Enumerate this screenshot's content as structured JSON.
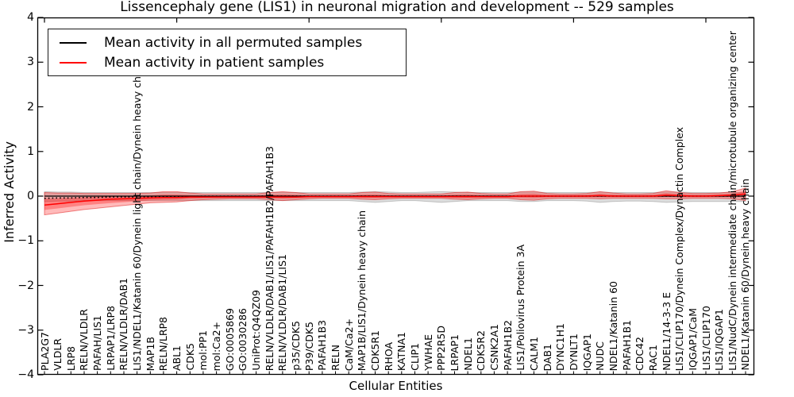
{
  "chart_data": {
    "type": "line",
    "title": "Lissencephaly gene (LIS1) in neuronal migration and development -- 529 samples",
    "xlabel": "Cellular Entities",
    "ylabel": "Inferred Activity",
    "ylim": [
      -4,
      4
    ],
    "yticks": [
      4,
      3,
      2,
      1,
      0,
      -1,
      -2,
      -3,
      -4
    ],
    "grid": false,
    "legend_position": "upper left",
    "legend": [
      {
        "label": "Mean activity in all permuted samples",
        "color": "#000000"
      },
      {
        "label": "Mean activity in patient samples",
        "color": "#ff0000"
      }
    ],
    "categories": [
      "PLA2G7",
      "VLDLR",
      "LRP8",
      "RELN/VLDLR",
      "PAFAH/LIS1",
      "LRPAP1/LRP8",
      "RELN/VLDLR/DAB1",
      "LIS1/NDEL1/Katanin 60/Dynein light chain/Dynein heavy chain",
      "MAP1B",
      "RELN/LRP8",
      "ABL1",
      "CDK5",
      "mol:PP1",
      "mol:Ca2+",
      "GO:0005869",
      "GO:0030286",
      "UniProt:Q4QZ09",
      "RELN/VLDLR/DAB1/LIS1/PAFAH1B2/PAFAH1B3",
      "RELN/VLDLR/DAB1/LIS1",
      "p35/CDK5",
      "P39/CDK5",
      "PAFAH1B3",
      "RELN",
      "CaM/Ca2+",
      "MAP1B/LIS1/Dynein heavy chain",
      "CDK5R1",
      "RHOA",
      "KATNA1",
      "CLIP1",
      "YWHAE",
      "PPP2R5D",
      "LRPAP1",
      "NDEL1",
      "CDK5R2",
      "CSNK2A1",
      "PAFAH1B2",
      "LIS1/Poliovirus Protein 3A",
      "CALM1",
      "DAB1",
      "DYNC1H1",
      "DYNLT1",
      "IQGAP1",
      "NUDC",
      "NDEL1/Katanin 60",
      "PAFAH1B1",
      "CDC42",
      "RAC1",
      "NDEL1/14-3-3 E",
      "LIS1/CLIP170/Dynein Complex/Dynactin Complex",
      "IQGAP1/CaM",
      "LIS1/CLIP170",
      "LIS1/IQGAP1",
      "LIS1/NudC/Dynein intermediate chain/microtubule organizing center",
      "NDEL1/Katanin 60/Dynein heavy chain"
    ],
    "series": [
      {
        "name": "Mean activity in all permuted samples",
        "color": "#000000",
        "style": "solid",
        "values": [
          0,
          0,
          0,
          0,
          0,
          0,
          0,
          0,
          0,
          0,
          0,
          0,
          0,
          0,
          0,
          0,
          0,
          0,
          0,
          0,
          0,
          0,
          0,
          0,
          0,
          0,
          0,
          0,
          0,
          0,
          0,
          0,
          0,
          0,
          0,
          0,
          0,
          0,
          0,
          0,
          0,
          0,
          0,
          0,
          0,
          0,
          0,
          0,
          0,
          0,
          0,
          0,
          0,
          0
        ]
      },
      {
        "name": "permuted mean (dotted)",
        "color": "#000000",
        "style": "dotted",
        "values": [
          -0.05,
          -0.04,
          -0.04,
          -0.03,
          -0.03,
          -0.02,
          -0.02,
          -0.02,
          -0.01,
          -0.01,
          -0.01,
          -0.01,
          0,
          0,
          0,
          0,
          0,
          0,
          0,
          0,
          0,
          0,
          0,
          0,
          0,
          0,
          0,
          0,
          0,
          0,
          0,
          0,
          0,
          0,
          0,
          0,
          0,
          0,
          0,
          0,
          0,
          0,
          0,
          0,
          0,
          0,
          0,
          0,
          0,
          0,
          0,
          0,
          0,
          0
        ]
      },
      {
        "name": "Mean activity in patient samples",
        "color": "#ff0000",
        "style": "solid",
        "values": [
          -0.2,
          -0.17,
          -0.14,
          -0.11,
          -0.09,
          -0.07,
          -0.06,
          -0.05,
          -0.04,
          -0.03,
          -0.03,
          -0.02,
          -0.02,
          -0.02,
          -0.02,
          -0.02,
          -0.02,
          -0.02,
          -0.02,
          -0.02,
          -0.01,
          -0.01,
          -0.01,
          -0.01,
          -0.01,
          -0.01,
          -0.01,
          -0.01,
          -0.01,
          -0.01,
          -0.01,
          -0.01,
          -0.01,
          -0.01,
          -0.01,
          -0.01,
          0,
          0,
          0,
          0,
          0,
          0,
          0.01,
          0,
          0,
          0,
          0,
          0.02,
          0.01,
          0,
          0,
          0.01,
          0.02,
          0.05
        ]
      }
    ],
    "bands": [
      {
        "name": "permuted-sample-range",
        "color": "rgba(128,128,128,0.28)",
        "edge": "rgba(128,128,128,0.40)",
        "hi": [
          0.1,
          0.09,
          0.09,
          0.08,
          0.08,
          0.08,
          0.08,
          0.08,
          0.08,
          0.08,
          0.08,
          0.08,
          0.08,
          0.08,
          0.08,
          0.08,
          0.08,
          0.08,
          0.08,
          0.08,
          0.08,
          0.08,
          0.08,
          0.08,
          0.09,
          0.1,
          0.09,
          0.08,
          0.08,
          0.09,
          0.1,
          0.09,
          0.08,
          0.08,
          0.08,
          0.08,
          0.09,
          0.09,
          0.08,
          0.08,
          0.08,
          0.08,
          0.09,
          0.08,
          0.08,
          0.08,
          0.08,
          0.09,
          0.09,
          0.08,
          0.08,
          0.08,
          0.08,
          0.08
        ],
        "lo": [
          -0.12,
          -0.11,
          -0.11,
          -0.1,
          -0.1,
          -0.1,
          -0.1,
          -0.1,
          -0.1,
          -0.1,
          -0.1,
          -0.1,
          -0.1,
          -0.1,
          -0.1,
          -0.1,
          -0.1,
          -0.1,
          -0.1,
          -0.1,
          -0.1,
          -0.1,
          -0.1,
          -0.1,
          -0.12,
          -0.14,
          -0.12,
          -0.1,
          -0.1,
          -0.12,
          -0.14,
          -0.12,
          -0.1,
          -0.1,
          -0.1,
          -0.1,
          -0.12,
          -0.12,
          -0.1,
          -0.1,
          -0.1,
          -0.11,
          -0.14,
          -0.12,
          -0.11,
          -0.11,
          -0.12,
          -0.14,
          -0.13,
          -0.12,
          -0.12,
          -0.12,
          -0.12,
          -0.12
        ]
      },
      {
        "name": "patient-sample-range-outer",
        "color": "rgba(255,0,0,0.27)",
        "edge": "rgba(220,0,0,0.45)",
        "hi": [
          0.08,
          0.07,
          0.07,
          0.06,
          0.06,
          0.06,
          0.06,
          0.06,
          0.07,
          0.1,
          0.1,
          0.07,
          0.05,
          0.05,
          0.05,
          0.05,
          0.05,
          0.08,
          0.1,
          0.08,
          0.05,
          0.05,
          0.05,
          0.05,
          0.08,
          0.09,
          0.06,
          0.05,
          0.05,
          0.05,
          0.05,
          0.08,
          0.09,
          0.06,
          0.05,
          0.05,
          0.1,
          0.11,
          0.06,
          0.05,
          0.05,
          0.06,
          0.1,
          0.07,
          0.05,
          0.05,
          0.06,
          0.12,
          0.08,
          0.06,
          0.06,
          0.07,
          0.1,
          0.18
        ],
        "lo": [
          -0.42,
          -0.38,
          -0.34,
          -0.3,
          -0.27,
          -0.24,
          -0.21,
          -0.18,
          -0.15,
          -0.14,
          -0.13,
          -0.1,
          -0.08,
          -0.07,
          -0.06,
          -0.06,
          -0.06,
          -0.08,
          -0.1,
          -0.08,
          -0.06,
          -0.05,
          -0.05,
          -0.05,
          -0.07,
          -0.08,
          -0.06,
          -0.05,
          -0.05,
          -0.05,
          -0.05,
          -0.07,
          -0.08,
          -0.06,
          -0.05,
          -0.05,
          -0.08,
          -0.09,
          -0.06,
          -0.05,
          -0.05,
          -0.05,
          -0.06,
          -0.05,
          -0.05,
          -0.05,
          -0.05,
          -0.06,
          -0.06,
          -0.05,
          -0.05,
          -0.05,
          -0.06,
          -0.1
        ]
      },
      {
        "name": "patient-sample-range-inner",
        "color": "rgba(255,0,0,0.30)",
        "edge": "none",
        "scale_from_mean": 0.5
      }
    ]
  }
}
